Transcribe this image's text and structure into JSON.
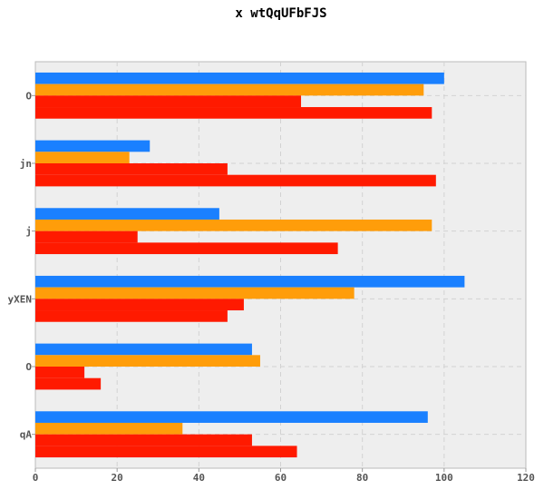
{
  "chart_data": {
    "type": "bar",
    "orientation": "horizontal",
    "title": "x wtQqUFbFJS",
    "xlabel": "",
    "ylabel": "",
    "categories": [
      "O",
      "jn",
      "j",
      "yXEN",
      "O",
      "qA"
    ],
    "xlim": [
      0,
      120
    ],
    "xticks": [
      0,
      20,
      40,
      60,
      80,
      100,
      120
    ],
    "grid": true,
    "series": [
      {
        "color": "#1a80ff",
        "values": [
          100,
          28,
          45,
          105,
          53,
          96
        ]
      },
      {
        "color": "#ff9d0a",
        "values": [
          95,
          23,
          97,
          78,
          55,
          36
        ]
      },
      {
        "color": "#ff1a00",
        "values": [
          65,
          47,
          25,
          51,
          12,
          53
        ]
      },
      {
        "color": "#ff1a00",
        "values": [
          97,
          98,
          74,
          47,
          16,
          64
        ]
      }
    ]
  }
}
